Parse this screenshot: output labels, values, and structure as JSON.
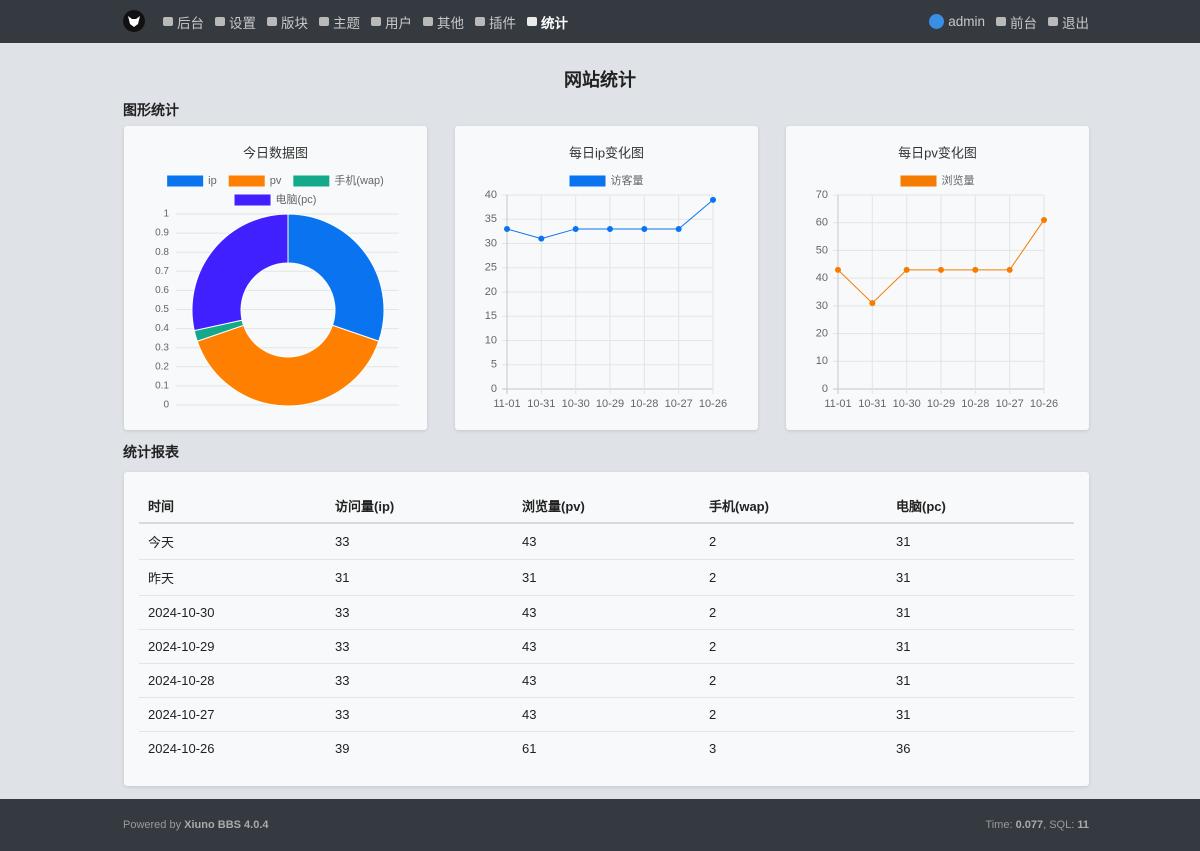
{
  "nav": {
    "left": [
      "后台",
      "设置",
      "版块",
      "主题",
      "用户",
      "其他",
      "插件",
      "统计"
    ],
    "right": [
      "admin",
      "前台",
      "退出"
    ]
  },
  "page_title": "网站统计",
  "sections": [
    "图形统计",
    "统计报表"
  ],
  "chart_data": [
    {
      "type": "doughnut",
      "title": "今日数据图",
      "categories": [
        "ip",
        "pv",
        "手机(wap)",
        "电脑(pc)"
      ],
      "values": [
        33,
        43,
        2,
        31
      ],
      "colors": [
        "#0a74f0",
        "#ff7f00",
        "#14a98b",
        "#4020ff"
      ],
      "ylim": [
        0,
        1
      ],
      "yticks": [
        0,
        0.1,
        0.2,
        0.3,
        0.4,
        0.5,
        0.6,
        0.7,
        0.8,
        0.9,
        1
      ],
      "grid": true
    },
    {
      "type": "line",
      "title": "每日ip变化图",
      "categories": [
        "11-01",
        "10-31",
        "10-30",
        "10-29",
        "10-28",
        "10-27",
        "10-26"
      ],
      "series": [
        {
          "name": "访客量",
          "color": "#0a74f0",
          "values": [
            33,
            31,
            33,
            33,
            33,
            33,
            39
          ]
        }
      ],
      "ylim": [
        0,
        40
      ],
      "yticks": [
        0,
        5,
        10,
        15,
        20,
        25,
        30,
        35,
        40
      ],
      "grid": true
    },
    {
      "type": "line",
      "title": "每日pv变化图",
      "categories": [
        "11-01",
        "10-31",
        "10-30",
        "10-29",
        "10-28",
        "10-27",
        "10-26"
      ],
      "series": [
        {
          "name": "浏览量",
          "color": "#f57c00",
          "values": [
            43,
            31,
            43,
            43,
            43,
            43,
            61
          ]
        }
      ],
      "ylim": [
        0,
        70
      ],
      "yticks": [
        0,
        10,
        20,
        30,
        40,
        50,
        60,
        70
      ],
      "grid": true
    }
  ],
  "table": {
    "headers": [
      "时间",
      "访问量(ip)",
      "浏览量(pv)",
      "手机(wap)",
      "电脑(pc)"
    ],
    "rows": [
      [
        "今天",
        33,
        43,
        2,
        31
      ],
      [
        "昨天",
        31,
        31,
        2,
        31
      ],
      [
        "2024-10-30",
        33,
        43,
        2,
        31
      ],
      [
        "2024-10-29",
        33,
        43,
        2,
        31
      ],
      [
        "2024-10-28",
        33,
        43,
        2,
        31
      ],
      [
        "2024-10-27",
        33,
        43,
        2,
        31
      ],
      [
        "2024-10-26",
        39,
        61,
        3,
        36
      ]
    ]
  },
  "footer": {
    "powered": "Powered by",
    "brand": "Xiuno BBS 4.0.4",
    "time_label": "Time:",
    "time": "0.077",
    "sql_label": ", SQL:",
    "sql": "11"
  }
}
